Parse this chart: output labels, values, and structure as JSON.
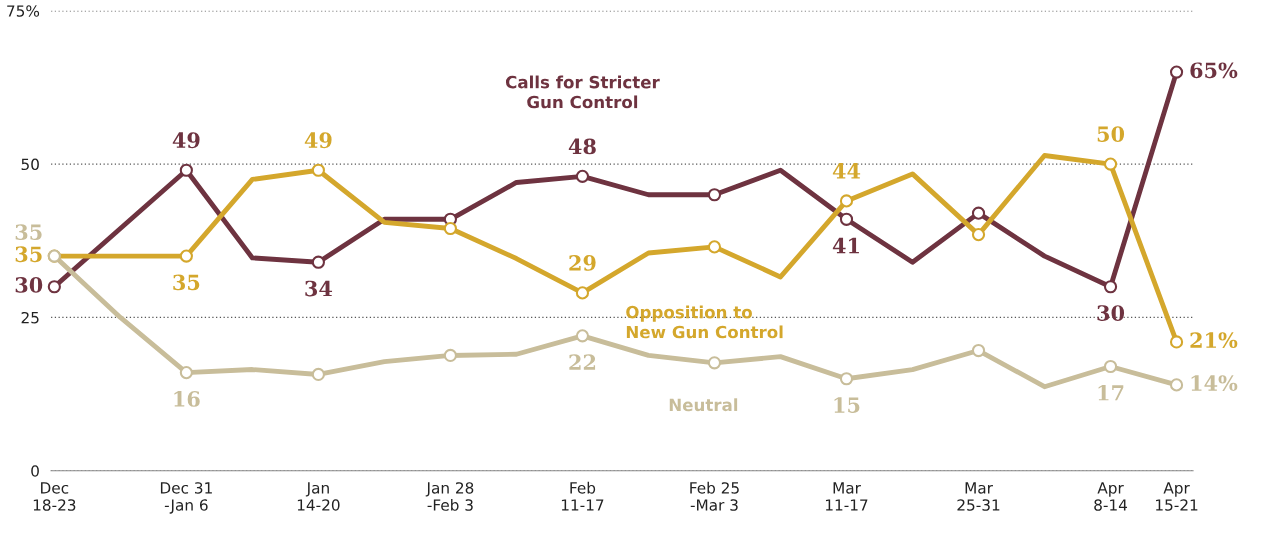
{
  "chart_data": {
    "type": "line",
    "categories": [
      "Dec\n18-23",
      null,
      "Dec 31\n-Jan 6",
      null,
      "Jan\n14-20",
      null,
      "Jan 28\n-Feb 3",
      null,
      "Feb\n11-17",
      null,
      "Feb 25\n-Mar 3",
      null,
      "Mar\n11-17",
      null,
      "Mar\n25-31",
      null,
      "Apr\n8-14",
      "Apr\n15-21"
    ],
    "series": [
      {
        "name": "Calls for Stricter\nGun Control",
        "color": "#6e3340",
        "values": [
          30,
          39.5,
          49,
          34.7,
          34,
          41,
          41,
          47,
          48,
          45,
          45,
          49,
          41,
          34,
          42,
          35,
          30,
          65
        ],
        "value_labels": [
          "30",
          null,
          "49",
          null,
          "34",
          null,
          null,
          null,
          "48",
          null,
          null,
          null,
          "41",
          null,
          null,
          null,
          "30",
          "65%"
        ]
      },
      {
        "name": "Opposition to\nNew Gun Control",
        "color": "#d4a72c",
        "values": [
          35,
          35,
          35,
          47.5,
          49,
          40.5,
          39.5,
          34.6,
          29,
          35.5,
          36.5,
          31.6,
          44,
          48.4,
          38.5,
          51.4,
          50,
          21
        ],
        "value_labels": [
          "35",
          null,
          "35",
          null,
          "49",
          null,
          null,
          null,
          "29",
          null,
          null,
          null,
          "44",
          null,
          null,
          null,
          "50",
          "21%"
        ]
      },
      {
        "name": "Neutral",
        "color": "#c8bd9a",
        "values": [
          35,
          25,
          16,
          16.5,
          15.7,
          17.8,
          18.8,
          19,
          22,
          18.8,
          17.6,
          18.6,
          15,
          16.5,
          19.6,
          13.7,
          17,
          14
        ],
        "value_labels": [
          "35",
          null,
          "16",
          null,
          null,
          null,
          null,
          null,
          "22",
          null,
          null,
          null,
          "15",
          null,
          null,
          null,
          "17",
          "14%"
        ]
      }
    ],
    "ylim": [
      0,
      75
    ],
    "yticks": [
      0,
      25,
      50,
      {
        "value": 75,
        "label": "75%"
      }
    ],
    "grid": "y",
    "marker": "circle",
    "line_style": "solid"
  }
}
